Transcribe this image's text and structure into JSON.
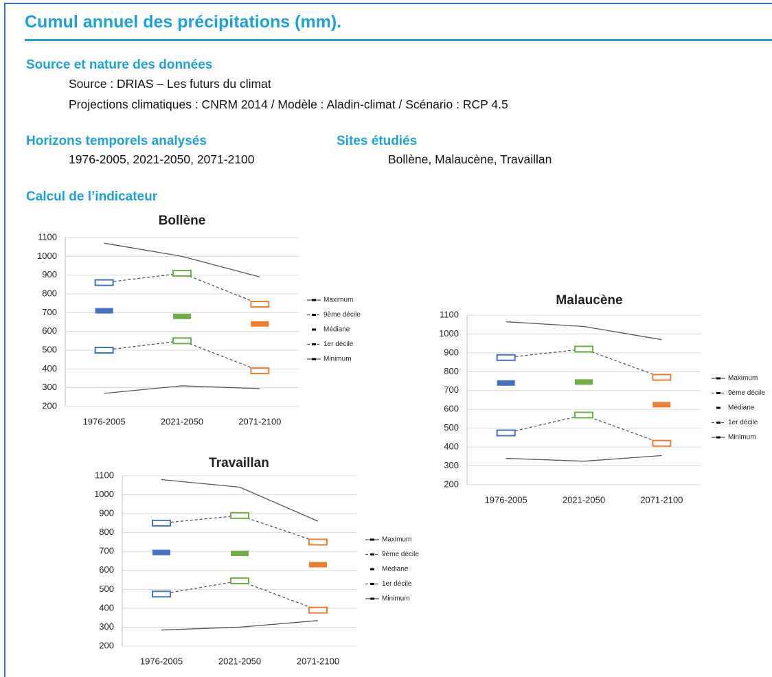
{
  "header": {
    "title": "Cumul annuel des précipitations (mm)."
  },
  "sections": [
    {
      "heading": "Source et nature des données",
      "lines": [
        "Source : DRIAS – Les futurs du climat",
        "Projections climatiques : CNRM 2014 / Modèle : Aladin-climat / Scénario : RCP 4.5"
      ]
    },
    {
      "heading": "Horizons temporels analysés",
      "lines": [
        "1976-2005, 2021-2050, 2071-2100"
      ]
    },
    {
      "heading": "Sites étudiés",
      "lines": [
        "Bollène, Malaucène, Travaillan"
      ]
    },
    {
      "heading": "Calcul de l’indicateur"
    }
  ],
  "chart_data": [
    {
      "type": "line",
      "title": "Bollène",
      "categories": [
        "1976-2005",
        "2021-2050",
        "2071-2100"
      ],
      "category_colors": [
        "#4472c4",
        "#70ad47",
        "#ed7d31"
      ],
      "ylim": [
        200,
        1100
      ],
      "yticks": [
        200,
        300,
        400,
        500,
        600,
        700,
        800,
        900,
        1000,
        1100
      ],
      "grid": true,
      "series": [
        {
          "name": "Maximum",
          "color": "#555555",
          "line_style": "solid",
          "values": [
            1070,
            1000,
            890
          ]
        },
        {
          "name": "9ème décile",
          "color": "#555555",
          "line_style": "dashed",
          "values": [
            860,
            910,
            745
          ]
        },
        {
          "name": "Médiane",
          "color": "#555555",
          "line_style": "none",
          "values": [
            710,
            680,
            640
          ]
        },
        {
          "name": "1er décile",
          "color": "#555555",
          "line_style": "dashed",
          "values": [
            500,
            550,
            390
          ]
        },
        {
          "name": "Minimum",
          "color": "#555555",
          "line_style": "solid",
          "values": [
            270,
            310,
            295
          ]
        }
      ]
    },
    {
      "type": "line",
      "title": "Malaucène",
      "categories": [
        "1976-2005",
        "2021-2050",
        "2071-2100"
      ],
      "category_colors": [
        "#4472c4",
        "#70ad47",
        "#ed7d31"
      ],
      "ylim": [
        200,
        1100
      ],
      "yticks": [
        200,
        300,
        400,
        500,
        600,
        700,
        800,
        900,
        1000,
        1100
      ],
      "grid": true,
      "series": [
        {
          "name": "Maximum",
          "color": "#555555",
          "line_style": "solid",
          "values": [
            1065,
            1040,
            970
          ]
        },
        {
          "name": "9ème décile",
          "color": "#555555",
          "line_style": "dashed",
          "values": [
            875,
            920,
            770
          ]
        },
        {
          "name": "Médiane",
          "color": "#555555",
          "line_style": "none",
          "values": [
            740,
            745,
            625
          ]
        },
        {
          "name": "1er décile",
          "color": "#555555",
          "line_style": "dashed",
          "values": [
            475,
            570,
            420
          ]
        },
        {
          "name": "Minimum",
          "color": "#555555",
          "line_style": "solid",
          "values": [
            340,
            325,
            355
          ]
        }
      ]
    },
    {
      "type": "line",
      "title": "Travaillan",
      "categories": [
        "1976-2005",
        "2021-2050",
        "2071-2100"
      ],
      "category_colors": [
        "#4472c4",
        "#70ad47",
        "#ed7d31"
      ],
      "ylim": [
        200,
        1100
      ],
      "yticks": [
        200,
        300,
        400,
        500,
        600,
        700,
        800,
        900,
        1000,
        1100
      ],
      "grid": true,
      "series": [
        {
          "name": "Maximum",
          "color": "#555555",
          "line_style": "solid",
          "values": [
            1080,
            1040,
            860
          ]
        },
        {
          "name": "9ème décile",
          "color": "#555555",
          "line_style": "dashed",
          "values": [
            850,
            890,
            750
          ]
        },
        {
          "name": "Médiane",
          "color": "#555555",
          "line_style": "none",
          "values": [
            695,
            690,
            630
          ]
        },
        {
          "name": "1er décile",
          "color": "#555555",
          "line_style": "dashed",
          "values": [
            475,
            545,
            390
          ]
        },
        {
          "name": "Minimum",
          "color": "#555555",
          "line_style": "solid",
          "values": [
            285,
            300,
            335
          ]
        }
      ]
    }
  ]
}
